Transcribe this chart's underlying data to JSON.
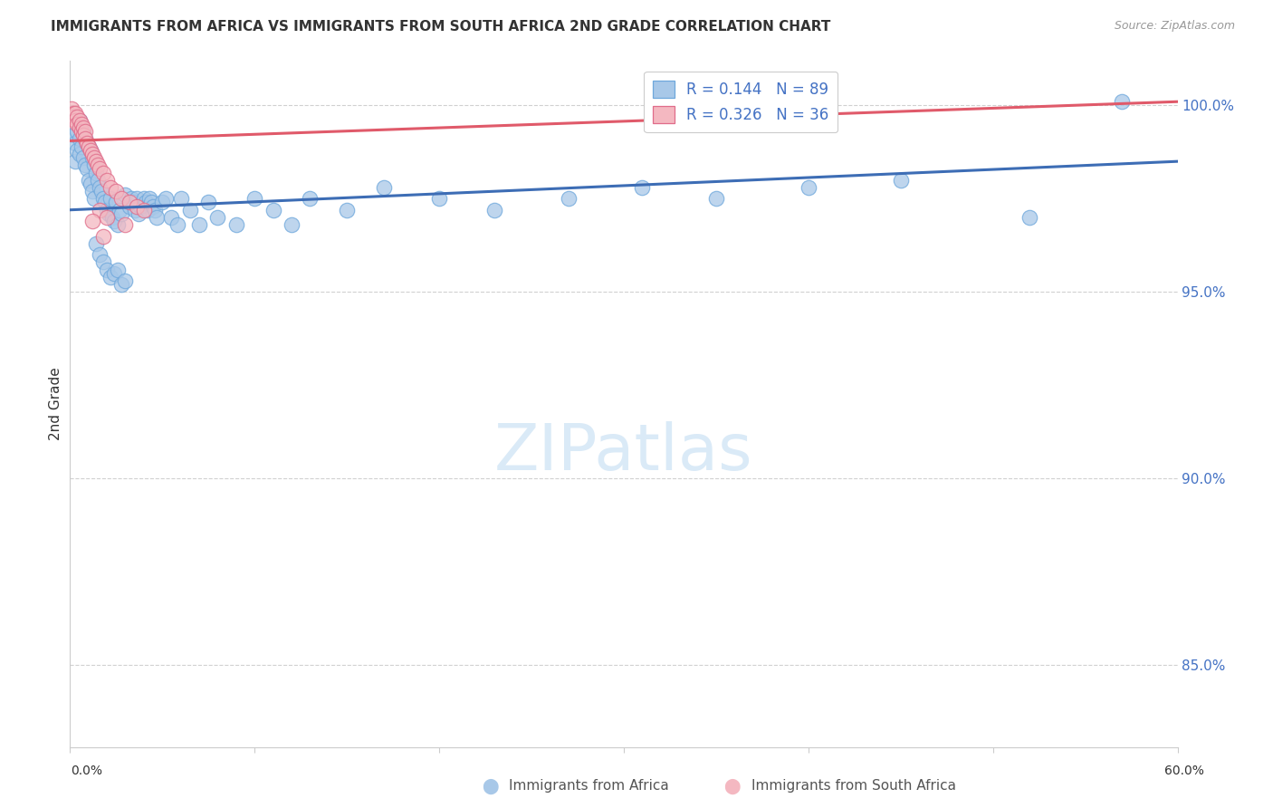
{
  "title": "IMMIGRANTS FROM AFRICA VS IMMIGRANTS FROM SOUTH AFRICA 2ND GRADE CORRELATION CHART",
  "source": "Source: ZipAtlas.com",
  "ylabel": "2nd Grade",
  "yticks": [
    0.85,
    0.9,
    0.95,
    1.0
  ],
  "ytick_labels": [
    "85.0%",
    "90.0%",
    "95.0%",
    "100.0%"
  ],
  "xmin": 0.0,
  "xmax": 0.6,
  "ymin": 0.828,
  "ymax": 1.012,
  "legend1_label": "R = 0.144   N = 89",
  "legend2_label": "R = 0.326   N = 36",
  "scatter_color1": "#a8c8e8",
  "scatter_color2": "#f4b8c1",
  "scatter_edge1": "#6fa8dc",
  "scatter_edge2": "#e06c8a",
  "line_color1": "#3d6db5",
  "line_color2": "#e05a6a",
  "watermark": "ZIPatlas",
  "watermark_color": "#daeaf7",
  "bottom_legend1": "Immigrants from Africa",
  "bottom_legend2": "Immigrants from South Africa",
  "blue_line_x": [
    0.0,
    0.6
  ],
  "blue_line_y": [
    0.972,
    0.985
  ],
  "pink_line_x": [
    0.0,
    0.6
  ],
  "pink_line_y": [
    0.9905,
    1.001
  ],
  "grid_color": "#d0d0d0",
  "blue_scatter_x": [
    0.002,
    0.003,
    0.003,
    0.004,
    0.004,
    0.005,
    0.005,
    0.005,
    0.006,
    0.006,
    0.007,
    0.007,
    0.008,
    0.008,
    0.009,
    0.009,
    0.01,
    0.01,
    0.011,
    0.011,
    0.012,
    0.012,
    0.013,
    0.013,
    0.014,
    0.015,
    0.016,
    0.017,
    0.018,
    0.019,
    0.02,
    0.021,
    0.022,
    0.023,
    0.024,
    0.025,
    0.026,
    0.027,
    0.028,
    0.03,
    0.032,
    0.033,
    0.034,
    0.035,
    0.036,
    0.037,
    0.038,
    0.04,
    0.041,
    0.042,
    0.043,
    0.044,
    0.045,
    0.046,
    0.047,
    0.05,
    0.052,
    0.055,
    0.058,
    0.06,
    0.065,
    0.07,
    0.075,
    0.08,
    0.09,
    0.1,
    0.11,
    0.12,
    0.13,
    0.15,
    0.17,
    0.2,
    0.23,
    0.27,
    0.31,
    0.35,
    0.4,
    0.45,
    0.52,
    0.57,
    0.014,
    0.016,
    0.018,
    0.02,
    0.022,
    0.024,
    0.026,
    0.028,
    0.03
  ],
  "blue_scatter_y": [
    0.992,
    0.99,
    0.985,
    0.993,
    0.988,
    0.996,
    0.991,
    0.987,
    0.994,
    0.989,
    0.993,
    0.986,
    0.991,
    0.984,
    0.99,
    0.983,
    0.989,
    0.98,
    0.988,
    0.979,
    0.986,
    0.977,
    0.984,
    0.975,
    0.982,
    0.98,
    0.978,
    0.977,
    0.975,
    0.974,
    0.972,
    0.971,
    0.975,
    0.97,
    0.969,
    0.974,
    0.968,
    0.972,
    0.971,
    0.976,
    0.973,
    0.975,
    0.974,
    0.972,
    0.975,
    0.971,
    0.973,
    0.975,
    0.974,
    0.972,
    0.975,
    0.974,
    0.973,
    0.972,
    0.97,
    0.974,
    0.975,
    0.97,
    0.968,
    0.975,
    0.972,
    0.968,
    0.974,
    0.97,
    0.968,
    0.975,
    0.972,
    0.968,
    0.975,
    0.972,
    0.978,
    0.975,
    0.972,
    0.975,
    0.978,
    0.975,
    0.978,
    0.98,
    0.97,
    1.001,
    0.963,
    0.96,
    0.958,
    0.956,
    0.954,
    0.955,
    0.956,
    0.952,
    0.953
  ],
  "pink_scatter_x": [
    0.001,
    0.002,
    0.002,
    0.003,
    0.003,
    0.004,
    0.004,
    0.005,
    0.005,
    0.006,
    0.006,
    0.007,
    0.007,
    0.008,
    0.008,
    0.009,
    0.01,
    0.011,
    0.012,
    0.013,
    0.014,
    0.015,
    0.016,
    0.018,
    0.02,
    0.022,
    0.025,
    0.028,
    0.032,
    0.036,
    0.04,
    0.016,
    0.02,
    0.03,
    0.012,
    0.018
  ],
  "pink_scatter_y": [
    0.999,
    0.998,
    0.997,
    0.998,
    0.996,
    0.997,
    0.995,
    0.996,
    0.994,
    0.995,
    0.993,
    0.994,
    0.992,
    0.993,
    0.991,
    0.99,
    0.989,
    0.988,
    0.987,
    0.986,
    0.985,
    0.984,
    0.983,
    0.982,
    0.98,
    0.978,
    0.977,
    0.975,
    0.974,
    0.973,
    0.972,
    0.972,
    0.97,
    0.968,
    0.969,
    0.965
  ]
}
